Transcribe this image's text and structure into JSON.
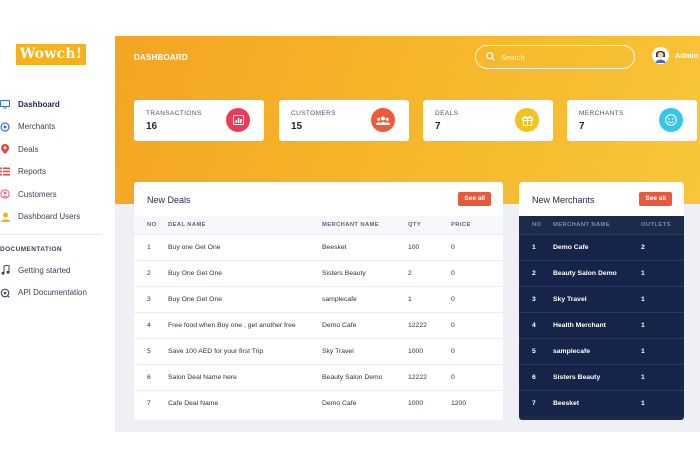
{
  "brand": {
    "logo_text": "Wowch!",
    "color": "#f5b21d"
  },
  "sidebar": {
    "items": [
      {
        "label": "Dashboard",
        "icon": "monitor-icon",
        "active": true
      },
      {
        "label": "Merchants",
        "icon": "merchants-icon"
      },
      {
        "label": "Deals",
        "icon": "location-pin-icon"
      },
      {
        "label": "Reports",
        "icon": "list-icon"
      },
      {
        "label": "Customers",
        "icon": "customers-icon"
      },
      {
        "label": "Dashboard Users",
        "icon": "user-icon"
      }
    ],
    "section_title": "DOCUMENTATION",
    "doc_items": [
      {
        "label": "Getting started",
        "icon": "music-note-icon"
      },
      {
        "label": "API Documentation",
        "icon": "api-icon"
      }
    ]
  },
  "header": {
    "title": "DASHBOARD",
    "search_placeholder": "Search",
    "user_name": "Admin"
  },
  "stats": [
    {
      "label": "TRANSACTIONS",
      "value": "16",
      "icon": "bar-chart-icon",
      "color": "#ec3b57"
    },
    {
      "label": "CUSTOMERS",
      "value": "15",
      "icon": "users-icon",
      "color": "#ee5a3a"
    },
    {
      "label": "DEALS",
      "value": "7",
      "icon": "gift-icon",
      "color": "#f5c11e"
    },
    {
      "label": "MERCHANTS",
      "value": "7",
      "icon": "smile-icon",
      "color": "#36c6e8"
    }
  ],
  "new_deals": {
    "title": "New Deals",
    "see_all": "See all",
    "columns": [
      "NO",
      "DEAL NAME",
      "MERCHANT NAME",
      "QTY",
      "PRICE"
    ],
    "rows": [
      [
        "1",
        "Buy one Get One",
        "Beesket",
        "100",
        "0"
      ],
      [
        "2",
        "Buy One Get One",
        "Sisters Beauty",
        "2",
        "0"
      ],
      [
        "3",
        "Buy One Get One",
        "samplecafe",
        "1",
        "0"
      ],
      [
        "4",
        "Free food when Buy one , get another free",
        "Demo Cafe",
        "12222",
        "0"
      ],
      [
        "5",
        "Save 100 AED for your first Trip",
        "Sky Travel",
        "1000",
        "0"
      ],
      [
        "6",
        "Salon Deal Name here",
        "Beauty Salon Demo",
        "12222",
        "0"
      ],
      [
        "7",
        "Cafe Deal Name",
        "Demo Cafe",
        "1000",
        "1200"
      ]
    ]
  },
  "new_merchants": {
    "title": "New Merchants",
    "see_all": "See all",
    "columns": [
      "NO",
      "MERCHANT NAME",
      "OUTLETS"
    ],
    "rows": [
      [
        "1",
        "Demo Cafe",
        "2"
      ],
      [
        "2",
        "Beauty Salon Demo",
        "1"
      ],
      [
        "3",
        "Sky Travel",
        "1"
      ],
      [
        "4",
        "Health Merchant",
        "1"
      ],
      [
        "5",
        "samplecafe",
        "1"
      ],
      [
        "6",
        "Sisters Beauty",
        "1"
      ],
      [
        "7",
        "Beesket",
        "1"
      ]
    ]
  }
}
